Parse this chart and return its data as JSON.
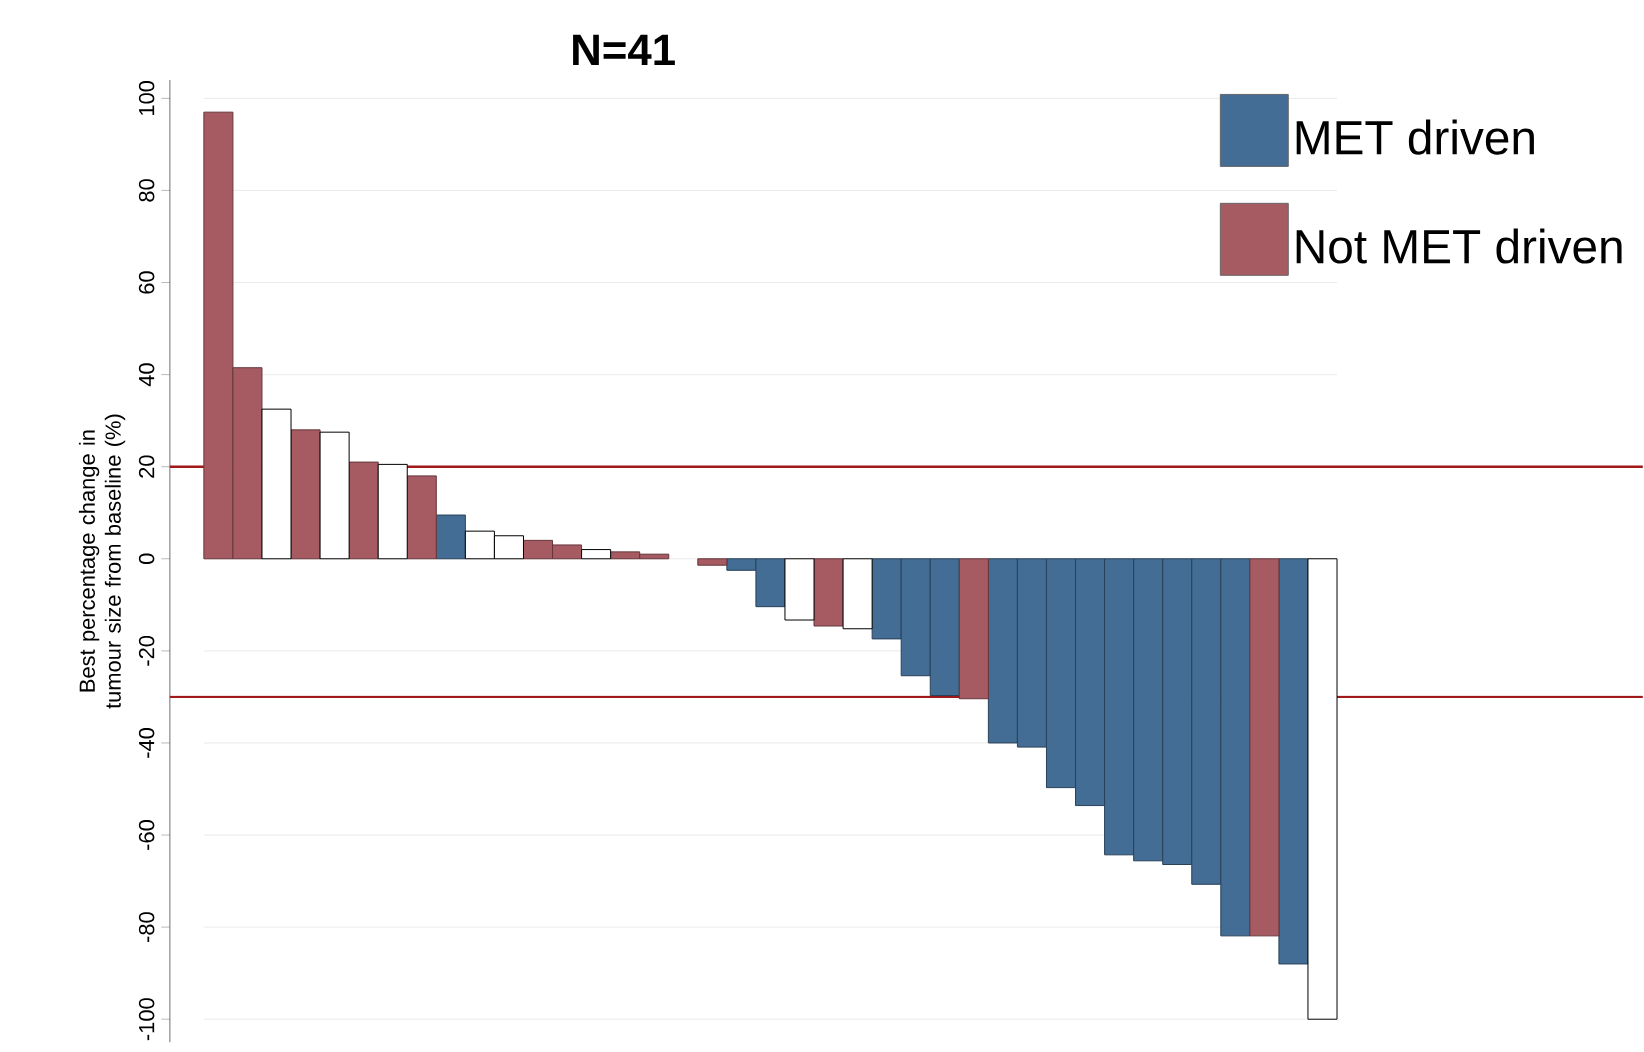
{
  "chart_data": {
    "type": "bar",
    "title": "N=41",
    "ylabel": "Best percentage change in tumour size from baseline (%)",
    "categories": [
      null,
      null,
      null,
      null,
      null,
      null,
      null,
      null,
      null,
      null,
      null,
      null,
      null,
      null,
      null,
      null,
      null,
      null,
      null,
      null,
      null,
      null,
      null,
      null,
      null,
      null,
      null,
      null,
      null,
      null,
      null,
      null,
      null,
      null,
      null,
      null,
      null,
      null,
      null
    ],
    "series": [
      {
        "name": "MET driven",
        "color": "#436d94",
        "values": [
          null,
          null,
          null,
          null,
          null,
          null,
          null,
          null,
          9.5,
          null,
          null,
          null,
          null,
          null,
          null,
          null,
          null,
          null,
          -2.5,
          -10.4,
          null,
          null,
          null,
          -17.4,
          -25.4,
          -29.7,
          null,
          -40,
          -40.9,
          -49.7,
          -53.6,
          -64.3,
          -65.6,
          -66.4,
          -70.7,
          -81.9,
          null,
          -88,
          null
        ]
      },
      {
        "name": "Not MET driven",
        "color": "#a65a62",
        "values": [
          97,
          41.5,
          null,
          28,
          null,
          21,
          null,
          18,
          null,
          null,
          null,
          4,
          3,
          null,
          1.5,
          1,
          null,
          -1.4,
          null,
          null,
          null,
          -14.6,
          null,
          null,
          null,
          null,
          -30.4,
          null,
          null,
          null,
          null,
          null,
          null,
          null,
          null,
          null,
          -81.9,
          null,
          null
        ]
      },
      {
        "color": "#ffffff",
        "values": [
          null,
          null,
          32.5,
          null,
          27.5,
          null,
          20.5,
          null,
          null,
          6,
          5,
          null,
          null,
          2,
          null,
          null,
          null,
          null,
          null,
          null,
          -13.3,
          null,
          -15.2,
          null,
          null,
          null,
          null,
          null,
          null,
          null,
          null,
          null,
          null,
          null,
          null,
          null,
          null,
          null,
          -100
        ]
      }
    ],
    "ylim": [
      -105,
      104
    ],
    "yticks": [
      -100,
      -80,
      -60,
      -40,
      -20,
      0,
      20,
      40,
      60,
      80,
      100
    ],
    "grid": "y",
    "legend": "top right",
    "ref_lines": [
      {
        "axis": "y",
        "value": 20,
        "color": "#a01818"
      },
      {
        "axis": "y",
        "value": -30,
        "color": "#a01818"
      }
    ]
  }
}
